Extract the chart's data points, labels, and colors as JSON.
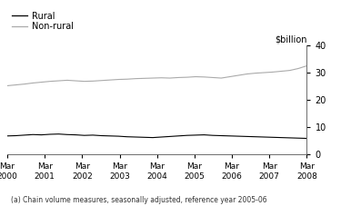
{
  "title": "",
  "ylabel": "$billion",
  "footnote": "(a) Chain volume measures, seasonally adjusted, reference year 2005-06",
  "legend_entries": [
    "Rural",
    "Non-rural"
  ],
  "legend_colors": [
    "#000000",
    "#aaaaaa"
  ],
  "ylim": [
    0,
    40
  ],
  "yticks": [
    0,
    10,
    20,
    30,
    40
  ],
  "xtick_labels": [
    "Mar\n2000",
    "Mar\n2001",
    "Mar\n2002",
    "Mar\n2003",
    "Mar\n2004",
    "Mar\n2005",
    "Mar\n2006",
    "Mar\n2007",
    "Mar\n2008"
  ],
  "background_color": "#ffffff",
  "rural_data": [
    6.8,
    6.9,
    7.1,
    7.3,
    7.2,
    7.4,
    7.5,
    7.3,
    7.2,
    7.0,
    7.1,
    6.9,
    6.8,
    6.7,
    6.5,
    6.4,
    6.3,
    6.2,
    6.4,
    6.6,
    6.8,
    7.0,
    7.1,
    7.2,
    7.0,
    6.9,
    6.8,
    6.7,
    6.6,
    6.5,
    6.4,
    6.3,
    6.2,
    6.1,
    6.0,
    5.9
  ],
  "nonrural_data": [
    25.2,
    25.5,
    25.8,
    26.2,
    26.5,
    26.8,
    27.0,
    27.2,
    27.0,
    26.8,
    26.9,
    27.1,
    27.3,
    27.5,
    27.6,
    27.8,
    27.9,
    28.0,
    28.1,
    28.0,
    28.2,
    28.3,
    28.5,
    28.4,
    28.2,
    28.0,
    28.5,
    29.0,
    29.5,
    29.8,
    30.0,
    30.2,
    30.5,
    30.8,
    31.5,
    32.5
  ]
}
